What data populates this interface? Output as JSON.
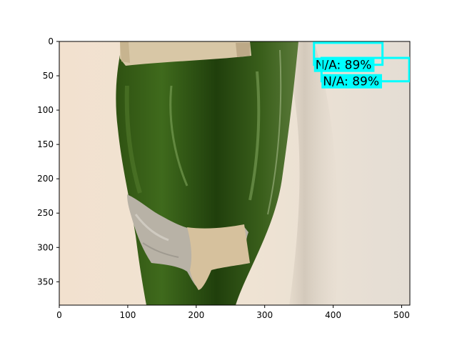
{
  "figure": {
    "xlim": [
      0,
      512
    ],
    "ylim": [
      384,
      0
    ],
    "x_ticks": [
      0,
      100,
      200,
      300,
      400,
      500
    ],
    "y_ticks": [
      0,
      50,
      100,
      150,
      200,
      250,
      300,
      350
    ],
    "x_tick_labels": [
      "0",
      "100",
      "200",
      "300",
      "400",
      "500"
    ],
    "y_tick_labels": [
      "0",
      "50",
      "100",
      "150",
      "200",
      "250",
      "300",
      "350"
    ]
  },
  "detections": [
    {
      "label": "N/A: 89%",
      "box_color": "#00ffff",
      "box": {
        "x0": 372,
        "y0": 2,
        "x1": 472,
        "y1": 34
      }
    },
    {
      "label": "N/A: 89%",
      "box_color": "#00ffff",
      "box": {
        "x0": 383,
        "y0": 24,
        "x1": 511,
        "y1": 58
      }
    }
  ],
  "colors": {
    "background_wall": "#efe2d2",
    "bottle_dark": "#1f3d0c",
    "bottle_mid": "#3f6a1c",
    "label_foil": "#b8b2a6",
    "label_paper": "#d8c7a6",
    "detection": "#00ffff"
  }
}
